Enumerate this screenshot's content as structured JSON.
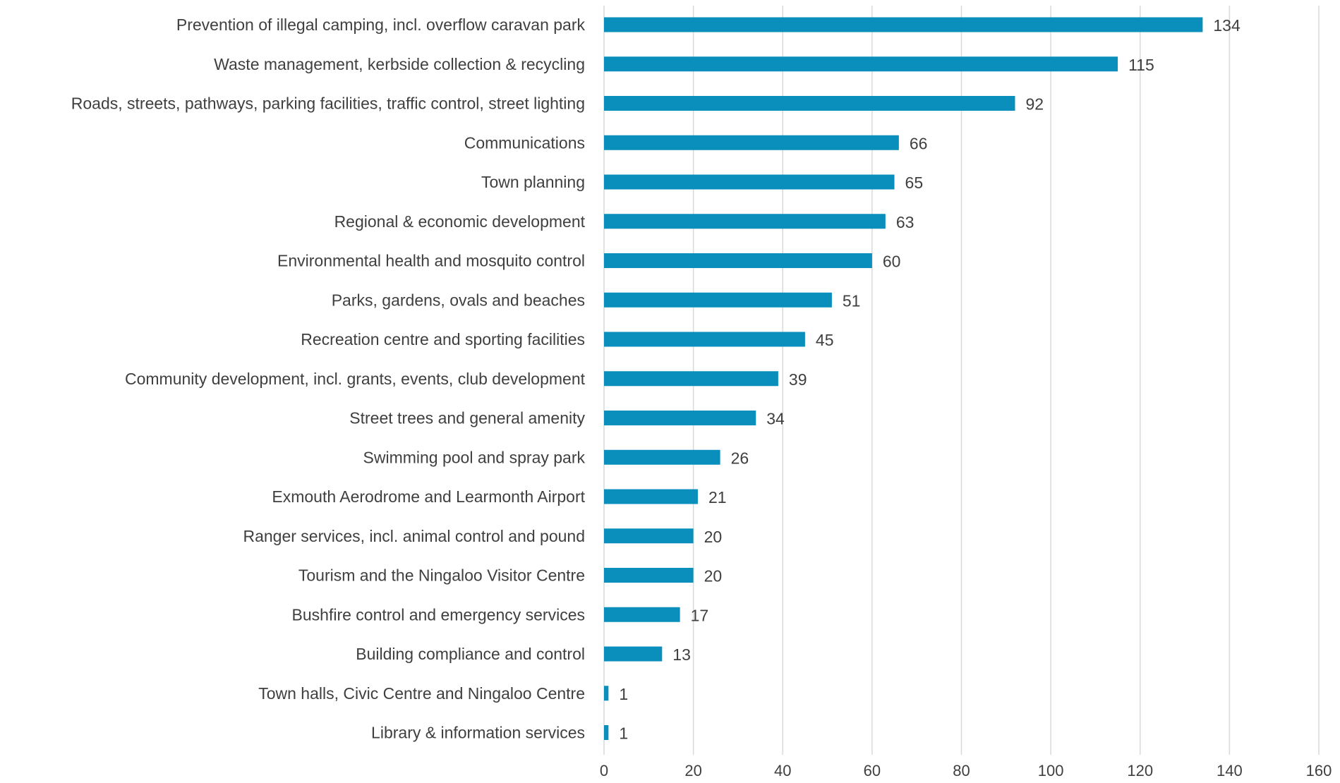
{
  "chart_data": {
    "type": "bar",
    "orientation": "horizontal",
    "categories": [
      "Prevention of illegal camping, incl. overflow caravan park",
      "Waste management, kerbside collection & recycling",
      "Roads, streets, pathways, parking facilities, traffic control, street lighting",
      "Communications",
      "Town planning",
      "Regional & economic development",
      "Environmental health and mosquito control",
      "Parks, gardens, ovals and beaches",
      "Recreation centre and sporting facilities",
      "Community development, incl. grants, events, club development",
      "Street trees and general amenity",
      "Swimming pool and spray park",
      "Exmouth Aerodrome and Learmonth Airport",
      "Ranger services, incl. animal control and pound",
      "Tourism and the Ningaloo Visitor Centre",
      "Bushfire control and emergency services",
      "Building compliance and control",
      "Town halls, Civic Centre and Ningaloo Centre",
      "Library & information services"
    ],
    "values": [
      134,
      115,
      92,
      66,
      65,
      63,
      60,
      51,
      45,
      39,
      34,
      26,
      21,
      20,
      20,
      17,
      13,
      1,
      1
    ],
    "xlim": [
      0,
      160
    ],
    "xticks": [
      "0",
      "20",
      "40",
      "60",
      "80",
      "100",
      "120",
      "140",
      "160"
    ],
    "grid": true,
    "bar_color": "#0a8fbc",
    "data_labels": true
  }
}
